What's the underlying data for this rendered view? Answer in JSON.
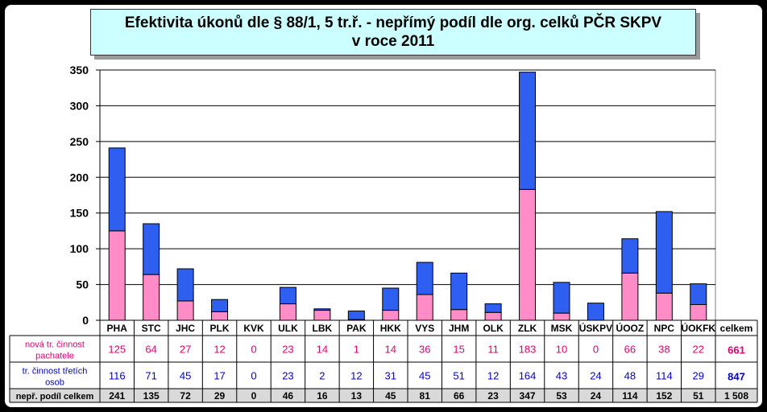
{
  "title_line1": "Efektivita úkonů dle § 88/1, 5 tr.ř. -  nepřímý podíl dle org. celků PČR SKPV",
  "title_line2": "v roce 2011",
  "colors": {
    "pink": "#ff8cc6",
    "blue": "#2e5ff0",
    "pink_text": "#e0006e",
    "blue_text": "#0000cc"
  },
  "chart_data": {
    "type": "bar",
    "stacked": true,
    "categories": [
      "PHA",
      "STC",
      "JHC",
      "PLK",
      "KVK",
      "ULK",
      "LBK",
      "PAK",
      "HKK",
      "VYS",
      "JHM",
      "OLK",
      "ZLK",
      "MSK",
      "ÚSKPV",
      "ÚOOZ",
      "NPC",
      "ÚOKFK"
    ],
    "series": [
      {
        "name": "nová tr. činnost pachatele",
        "color": "#ff8cc6",
        "values": [
          125,
          64,
          27,
          12,
          0,
          23,
          14,
          1,
          14,
          36,
          15,
          11,
          183,
          10,
          0,
          66,
          38,
          22
        ]
      },
      {
        "name": "tr. činnost třetích osob",
        "color": "#2e5ff0",
        "values": [
          116,
          71,
          45,
          17,
          0,
          23,
          2,
          12,
          31,
          45,
          51,
          12,
          164,
          43,
          24,
          48,
          114,
          29
        ]
      }
    ],
    "totals_label": "nepř. podíl celkem",
    "totals": [
      "241",
      "135",
      "72",
      "29",
      "0",
      "46",
      "16",
      "13",
      "45",
      "81",
      "66",
      "23",
      "347",
      "53",
      "24",
      "114",
      "152",
      "51"
    ],
    "summary_header": "celkem",
    "summary": {
      "series1": "661",
      "series2": "847",
      "total": "1 508"
    },
    "yticks": [
      "0",
      "50",
      "100",
      "150",
      "200",
      "250",
      "300",
      "350"
    ],
    "ylim": [
      0,
      350
    ],
    "grid": true
  }
}
